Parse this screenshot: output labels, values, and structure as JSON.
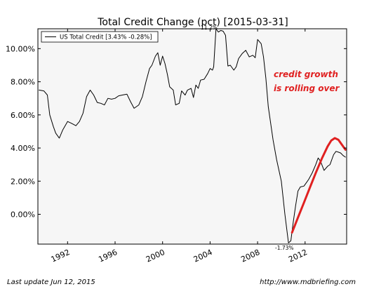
{
  "chart_data": {
    "type": "line",
    "title": "Total Credit Change (pct) [2015-03-31]",
    "xlabel": "",
    "ylabel": "",
    "xlim": [
      1989.5,
      2015.5
    ],
    "ylim": [
      -1.8,
      11.2
    ],
    "x_ticks": [
      1992,
      1996,
      2000,
      2004,
      2008,
      2012
    ],
    "x_tick_labels": [
      "1992",
      "1996",
      "2000",
      "2004",
      "2008",
      "2012"
    ],
    "y_ticks": [
      0,
      2,
      4,
      6,
      8,
      10
    ],
    "y_tick_labels": [
      "0.00%",
      "2.00%",
      "4.00%",
      "6.00%",
      "8.00%",
      "10.00%"
    ],
    "grid": false,
    "legend": {
      "placement": "top-left",
      "entries": [
        "US Total Credit [3.43% -0.28%]"
      ]
    },
    "series": [
      {
        "name": "US Total Credit [3.43% -0.28%]",
        "color": "#000000",
        "x": [
          1989.6,
          1990.0,
          1990.3,
          1990.5,
          1990.8,
          1991.0,
          1991.3,
          1991.6,
          1992.0,
          1992.3,
          1992.7,
          1993.0,
          1993.3,
          1993.6,
          1993.9,
          1994.2,
          1994.5,
          1994.8,
          1995.1,
          1995.4,
          1995.7,
          1996.0,
          1996.3,
          1996.6,
          1997.0,
          1997.3,
          1997.6,
          1998.0,
          1998.3,
          1998.6,
          1998.9,
          1999.1,
          1999.4,
          1999.6,
          1999.8,
          2000.0,
          2000.2,
          2000.4,
          2000.6,
          2000.9,
          2001.1,
          2001.4,
          2001.6,
          2001.9,
          2002.1,
          2002.4,
          2002.6,
          2002.8,
          2003.0,
          2003.2,
          2003.5,
          2003.8,
          2004.0,
          2004.2,
          2004.3,
          2004.5,
          2004.7,
          2004.9,
          2005.1,
          2005.3,
          2005.5,
          2005.7,
          2006.0,
          2006.2,
          2006.4,
          2006.7,
          2007.0,
          2007.3,
          2007.6,
          2007.8,
          2008.0,
          2008.3,
          2008.5,
          2008.7,
          2008.9,
          2009.1,
          2009.3,
          2009.6,
          2010.0,
          2010.3,
          2010.6,
          2010.8,
          2011.0,
          2011.2,
          2011.4,
          2011.6,
          2011.9,
          2012.1,
          2012.3,
          2012.6,
          2012.9,
          2013.1,
          2013.3,
          2013.6,
          2013.9,
          2014.1,
          2014.4,
          2014.6,
          2014.8,
          2015.0,
          2015.2,
          2015.4
        ],
        "y": [
          7.5,
          7.45,
          7.2,
          6.0,
          5.3,
          4.9,
          4.6,
          5.1,
          5.6,
          5.5,
          5.35,
          5.6,
          6.1,
          7.1,
          7.5,
          7.2,
          6.75,
          6.7,
          6.6,
          7.0,
          6.95,
          7.0,
          7.15,
          7.2,
          7.25,
          6.8,
          6.4,
          6.6,
          7.1,
          8.0,
          8.8,
          9.0,
          9.55,
          9.75,
          9.0,
          9.55,
          9.1,
          8.45,
          7.7,
          7.5,
          6.6,
          6.7,
          7.45,
          7.2,
          7.5,
          7.6,
          7.05,
          7.8,
          7.6,
          8.1,
          8.15,
          8.5,
          8.8,
          8.7,
          8.9,
          11.2,
          11.0,
          11.1,
          11.05,
          10.8,
          8.95,
          9.0,
          8.7,
          8.9,
          9.4,
          9.7,
          9.9,
          9.5,
          9.6,
          9.45,
          10.55,
          10.3,
          9.5,
          8.2,
          6.5,
          5.5,
          4.5,
          3.3,
          2.0,
          0.0,
          -1.73,
          -1.6,
          -0.5,
          0.5,
          1.4,
          1.65,
          1.7,
          1.9,
          2.1,
          2.5,
          3.0,
          3.4,
          3.2,
          2.65,
          2.9,
          3.0,
          3.6,
          3.8,
          3.75,
          3.7,
          3.55,
          3.45
        ]
      },
      {
        "name": "",
        "color": "#e02020",
        "x": [
          2010.9,
          2011.4,
          2011.9,
          2012.4,
          2012.9,
          2013.4,
          2013.9,
          2014.2,
          2014.5,
          2014.8,
          2015.1,
          2015.4
        ],
        "y": [
          -1.1,
          -0.2,
          0.7,
          1.6,
          2.5,
          3.35,
          4.1,
          4.45,
          4.6,
          4.5,
          4.2,
          3.9
        ]
      }
    ],
    "annotations": [
      {
        "text": "credit growth",
        "x": 2010.2,
        "y": 8.5
      },
      {
        "text": "is rolling over",
        "x": 2010.2,
        "y": 7.65
      },
      {
        "text": "-1.73%",
        "x": 2010.5,
        "y": -1.73
      },
      {
        "text": "11.2%",
        "x": 2004.6,
        "y": 11.2
      }
    ]
  },
  "footer": {
    "left": "Last update Jun 12, 2015",
    "right": "http://www.mdbriefing.com"
  }
}
